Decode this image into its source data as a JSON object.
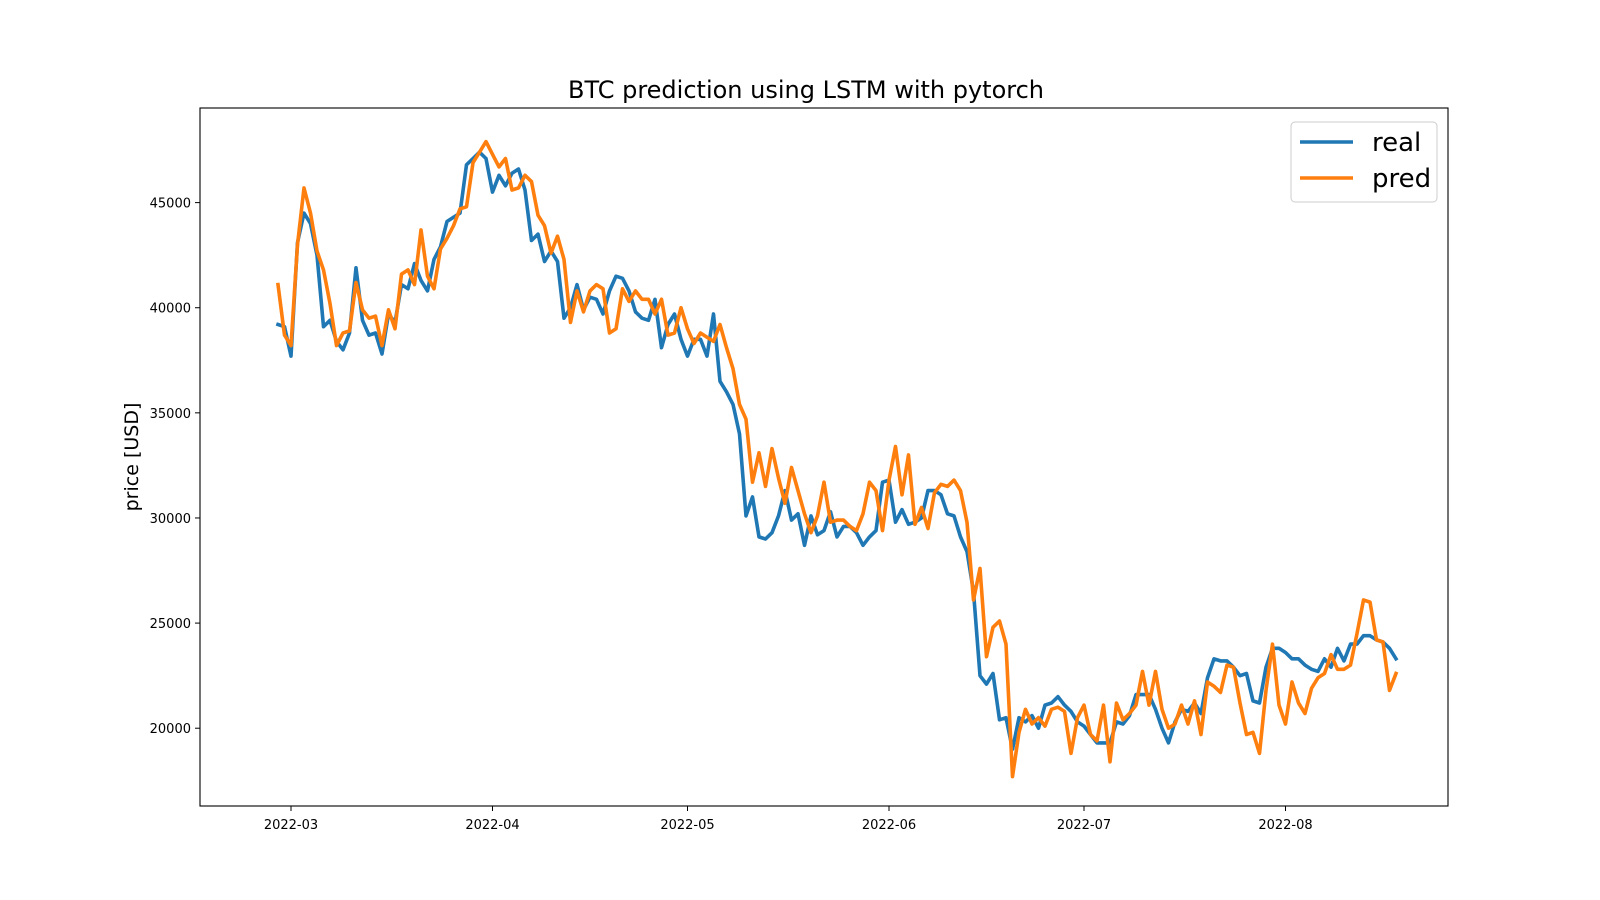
{
  "chart_data": {
    "type": "line",
    "title": "BTC prediction using LSTM with pytorch",
    "xlabel": "",
    "ylabel": "price [USD]",
    "x_start": "2022-02-27",
    "x_end": "2022-08-19",
    "xlim": [
      "2022-02-15",
      "2022-08-26"
    ],
    "ylim": [
      16300,
      49500
    ],
    "x_ticks": [
      "2022-03",
      "2022-04",
      "2022-05",
      "2022-06",
      "2022-07",
      "2022-08"
    ],
    "y_ticks": [
      20000,
      25000,
      30000,
      35000,
      40000,
      45000
    ],
    "grid": false,
    "legend": {
      "position": "upper right",
      "entries": [
        "real",
        "pred"
      ]
    },
    "series": [
      {
        "name": "real",
        "color": "#1f77b4",
        "values": [
          39200,
          39100,
          37700,
          43100,
          44500,
          44000,
          42500,
          39100,
          39400,
          38400,
          38000,
          38800,
          41900,
          39400,
          38700,
          38800,
          37800,
          39700,
          39300,
          41100,
          40900,
          42100,
          41300,
          40800,
          42300,
          42900,
          44100,
          44300,
          44500,
          46800,
          47100,
          47400,
          47100,
          45500,
          46300,
          45800,
          46400,
          46600,
          45600,
          43200,
          43500,
          42200,
          42700,
          42200,
          39500,
          40000,
          41100,
          39900,
          40500,
          40400,
          39700,
          40800,
          41500,
          41400,
          40800,
          39800,
          39500,
          39400,
          40400,
          38100,
          39200,
          39700,
          38500,
          37700,
          38500,
          38500,
          37700,
          39700,
          36500,
          36000,
          35400,
          34000,
          30100,
          31000,
          29100,
          29000,
          29300,
          30100,
          31300,
          29900,
          30200,
          28700,
          30100,
          29200,
          29400,
          30300,
          29100,
          29600,
          29600,
          29300,
          28700,
          29100,
          29400,
          31700,
          31800,
          29800,
          30400,
          29700,
          29800,
          30000,
          31300,
          31300,
          31100,
          30200,
          30100,
          29100,
          28400,
          26500,
          22500,
          22100,
          22600,
          20400,
          20500,
          19000,
          20500,
          20300,
          20600,
          20000,
          21100,
          21200,
          21500,
          21100,
          20800,
          20300,
          20100,
          19700,
          19300,
          19300,
          19300,
          20300,
          20200,
          20600,
          21600,
          21600,
          21600,
          20900,
          20000,
          19300,
          20300,
          20900,
          20800,
          21200,
          20700,
          22400,
          23300,
          23200,
          23200,
          22900,
          22500,
          22600,
          21300,
          21200,
          22900,
          23800,
          23800,
          23600,
          23300,
          23300,
          23000,
          22800,
          22700,
          23300,
          22900,
          23800,
          23200,
          24000,
          24000,
          24400,
          24400,
          24200,
          24100,
          23800,
          23300
        ]
      },
      {
        "name": "pred",
        "color": "#ff7f0e",
        "values": [
          41100,
          38700,
          38200,
          43000,
          45700,
          44500,
          42700,
          41800,
          40200,
          38200,
          38800,
          38900,
          41200,
          39900,
          39500,
          39600,
          38200,
          39900,
          39000,
          41600,
          41800,
          41100,
          43700,
          41500,
          40900,
          42800,
          43300,
          43900,
          44700,
          44800,
          46900,
          47400,
          47900,
          47300,
          46700,
          47100,
          45600,
          45700,
          46300,
          46000,
          44400,
          43900,
          42600,
          43400,
          42300,
          39300,
          40800,
          39800,
          40800,
          41100,
          40900,
          38800,
          39000,
          40900,
          40300,
          40800,
          40400,
          40400,
          39700,
          40400,
          38700,
          38800,
          40000,
          39000,
          38300,
          38800,
          38600,
          38400,
          39200,
          38100,
          37100,
          35400,
          34700,
          31700,
          33100,
          31500,
          33300,
          31900,
          30700,
          32400,
          31300,
          30200,
          29300,
          30100,
          31700,
          29800,
          29900,
          29900,
          29600,
          29400,
          30200,
          31700,
          31300,
          29400,
          31800,
          33400,
          31100,
          33000,
          29700,
          30500,
          29500,
          31200,
          31600,
          31500,
          31800,
          31300,
          29800,
          26100,
          27600,
          23400,
          24800,
          25100,
          24000,
          17700,
          19800,
          20900,
          20200,
          20500,
          20100,
          20900,
          21000,
          20800,
          18800,
          20500,
          21100,
          19700,
          19400,
          21100,
          18400,
          21200,
          20400,
          20700,
          21100,
          22700,
          21100,
          22700,
          20900,
          20000,
          20200,
          21100,
          20200,
          21300,
          19700,
          22200,
          22000,
          21700,
          23000,
          22900,
          21200,
          19700,
          19800,
          18800,
          21800,
          24000,
          21100,
          20200,
          22200,
          21200,
          20700,
          21900,
          22400,
          22600,
          23500,
          22800,
          22800,
          23000,
          24500,
          26100,
          26000,
          24200,
          24100,
          21800,
          22600
        ]
      }
    ]
  }
}
